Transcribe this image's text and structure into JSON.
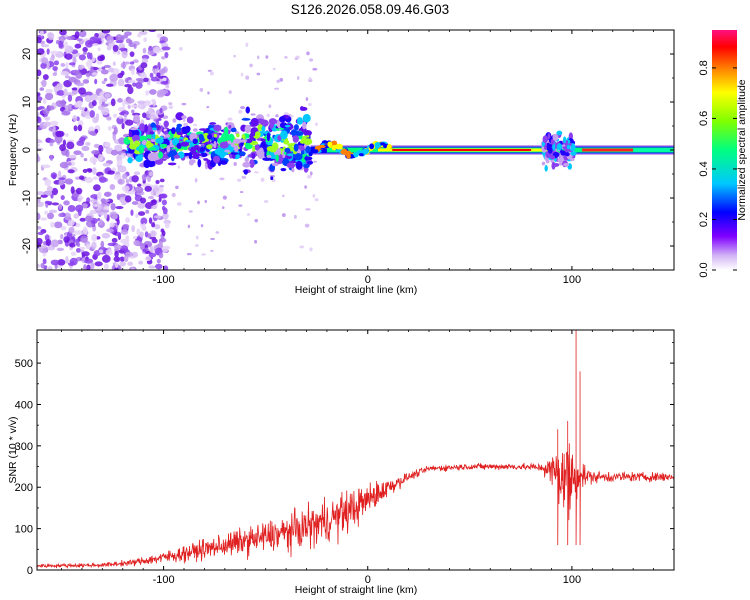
{
  "title": "S126.2026.058.09.46.G03",
  "chart_data": [
    {
      "type": "heatmap",
      "name": "spectrogram",
      "xlabel": "Height of straight line (km)",
      "ylabel": "Frequency (Hz)",
      "xlim": [
        -162,
        150
      ],
      "ylim": [
        -25,
        25
      ],
      "xticks": [
        -100,
        0,
        100
      ],
      "xtick_labels": [
        "-100",
        "0",
        "100"
      ],
      "yticks": [
        -20,
        -10,
        0,
        10,
        20
      ],
      "ytick_labels": [
        "-20",
        "-10",
        "0",
        "10",
        "20"
      ],
      "colorbar": {
        "label": "Normalized spectral amplitude",
        "range": [
          0,
          0.95
        ],
        "ticks": [
          0,
          0.2,
          0.4,
          0.6,
          0.8
        ],
        "tick_labels": [
          "0.0",
          "0.2",
          "0.4",
          "0.6",
          "0.8"
        ],
        "colors": [
          "#ffffff",
          "#c8a0f0",
          "#8000ff",
          "#0000ff",
          "#00c8ff",
          "#00ff80",
          "#80ff00",
          "#ffff00",
          "#ff8000",
          "#ff0000",
          "#ff1080"
        ]
      },
      "regions": [
        {
          "x_range": [
            -162,
            -100
          ],
          "freq_spread_hz": 25,
          "description_level": "noise"
        },
        {
          "x_range": [
            -118,
            -30
          ],
          "freq_center_hz": 2,
          "freq_spread_hz": 8
        },
        {
          "x_range": [
            -28,
            150
          ],
          "freq_center_hz": 0,
          "line": "carrier"
        },
        {
          "x_range": [
            88,
            100
          ],
          "freq_spread_hz": 7,
          "disturbance": true
        }
      ]
    },
    {
      "type": "line",
      "name": "snr",
      "xlabel": "Height of straight line (km)",
      "ylabel": "SNR (10 * v/v)",
      "xlim": [
        -162,
        150
      ],
      "ylim": [
        0,
        580
      ],
      "xticks": [
        -100,
        0,
        100
      ],
      "xtick_labels": [
        "-100",
        "0",
        "100"
      ],
      "yticks": [
        0,
        100,
        200,
        300,
        400,
        500
      ],
      "ytick_labels": [
        "0",
        "100",
        "200",
        "300",
        "400",
        "500"
      ],
      "color": "#e02020",
      "envelope": {
        "x": [
          -162,
          -130,
          -115,
          -100,
          -80,
          -60,
          -40,
          -25,
          -10,
          0,
          10,
          20,
          30,
          50,
          70,
          85,
          90,
          95,
          100,
          103,
          110,
          130,
          150
        ],
        "mean": [
          10,
          12,
          18,
          30,
          50,
          70,
          90,
          110,
          140,
          170,
          200,
          225,
          245,
          250,
          250,
          248,
          240,
          230,
          220,
          230,
          225,
          225,
          225
        ],
        "noise": [
          5,
          5,
          8,
          15,
          25,
          35,
          45,
          55,
          55,
          40,
          25,
          10,
          8,
          8,
          8,
          10,
          40,
          90,
          120,
          40,
          15,
          12,
          12
        ]
      },
      "peaks": [
        {
          "x": 102,
          "y": 580
        },
        {
          "x": 104,
          "y": 480
        },
        {
          "x": 98,
          "y": 360
        },
        {
          "x": 93,
          "y": 340
        }
      ]
    }
  ]
}
